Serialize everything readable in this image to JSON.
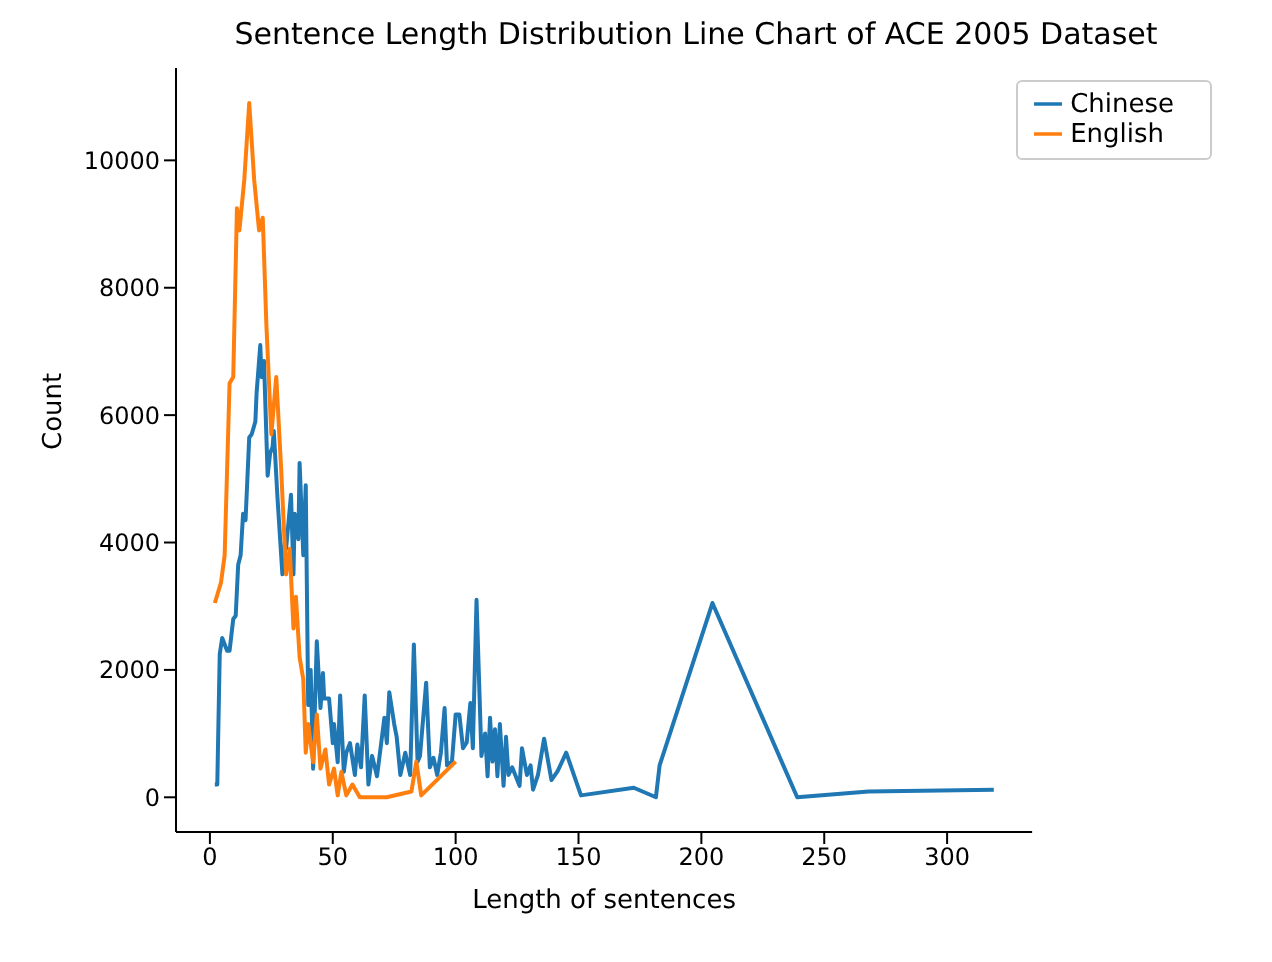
{
  "chart_data": {
    "type": "line",
    "title": "Sentence Length Distribution Line Chart of ACE 2005 Dataset",
    "xlabel": "Length of sentences",
    "ylabel": "Count",
    "xlim": [
      -13.8,
      334.6
    ],
    "xticks": [
      0,
      50,
      100,
      150,
      200,
      250,
      300
    ],
    "ylim": [
      -545,
      11450
    ],
    "yticks": [
      0,
      2000,
      4000,
      6000,
      8000,
      10000
    ],
    "grid": false,
    "legend": "top right",
    "series": [
      {
        "name": "Chinese",
        "color": "#1f77b4",
        "x": [
          2,
          3,
          4,
          5,
          7,
          8,
          9.5,
          10.5,
          11.5,
          12.5,
          13.5,
          14.5,
          16,
          17,
          18.5,
          19,
          20.5,
          21,
          22,
          23.5,
          24.5,
          25.5,
          26,
          27.5,
          29.5,
          30.5,
          31,
          33,
          34,
          34.5,
          36,
          36.5,
          38,
          39,
          40,
          41,
          42,
          43.5,
          45,
          46,
          46.5,
          48.5,
          50,
          50.5,
          52,
          53,
          54.5,
          55.5,
          57,
          59,
          60,
          61.5,
          63,
          64.5,
          66,
          68,
          71,
          72,
          73,
          75,
          76,
          77.5,
          79.5,
          81.5,
          83,
          84.5,
          85.5,
          88,
          89.5,
          91,
          92.5,
          94,
          95.5,
          96.5,
          98.5,
          100,
          101.5,
          103,
          104.5,
          106,
          107,
          108.5,
          110.5,
          112,
          113,
          114,
          115,
          116,
          117,
          118,
          119.5,
          120.5,
          121.5,
          123,
          126,
          127,
          129,
          130.5,
          131.5,
          133.5,
          136,
          139,
          141.5,
          145,
          151,
          172.5,
          181.5,
          183,
          204.5,
          239,
          268,
          319
        ],
        "values": [
          200,
          200,
          2250,
          2500,
          2300,
          2300,
          2800,
          2850,
          3650,
          3800,
          4450,
          4350,
          5650,
          5700,
          5900,
          6350,
          7100,
          6600,
          6850,
          5050,
          5400,
          5500,
          5750,
          4700,
          3500,
          4000,
          3900,
          4750,
          3500,
          4450,
          4050,
          5250,
          3800,
          4900,
          1450,
          2000,
          450,
          2450,
          1400,
          1950,
          1550,
          1550,
          850,
          1150,
          550,
          1600,
          400,
          700,
          850,
          350,
          830,
          470,
          1600,
          200,
          650,
          330,
          1250,
          850,
          1650,
          1150,
          950,
          350,
          700,
          350,
          2400,
          560,
          650,
          1800,
          470,
          620,
          350,
          700,
          1400,
          500,
          560,
          1300,
          1300,
          770,
          860,
          1480,
          770,
          3100,
          650,
          1000,
          330,
          1250,
          560,
          1070,
          330,
          1150,
          180,
          950,
          350,
          470,
          180,
          770,
          350,
          500,
          120,
          350,
          920,
          270,
          410,
          700,
          30,
          150,
          0,
          500,
          3050,
          0,
          90,
          120
        ]
      },
      {
        "name": "English",
        "color": "#ff7f0e",
        "x": [
          2,
          4.5,
          6,
          8,
          9.5,
          11,
          12,
          14,
          16,
          18,
          20,
          21.5,
          23,
          25,
          27,
          29,
          31,
          32.5,
          34,
          35,
          36.5,
          38,
          39,
          40,
          42,
          43.5,
          45,
          47,
          48.5,
          50.5,
          52,
          53.5,
          55.5,
          58,
          61,
          72,
          82,
          84,
          86,
          100
        ],
        "values": [
          3050,
          3370,
          3800,
          6500,
          6600,
          9250,
          8900,
          9700,
          10900,
          9700,
          8900,
          9100,
          7400,
          5700,
          6600,
          5150,
          3500,
          3900,
          2650,
          3150,
          2200,
          1850,
          700,
          1150,
          550,
          1300,
          450,
          750,
          200,
          450,
          30,
          400,
          30,
          200,
          0,
          0,
          90,
          560,
          30,
          560
        ]
      }
    ]
  }
}
